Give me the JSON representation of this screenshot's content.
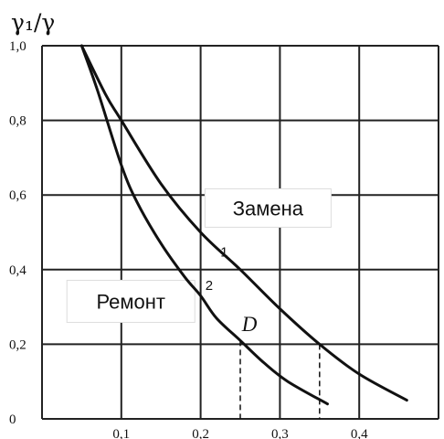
{
  "chart_data": {
    "type": "line",
    "ylabel": "γ₁/γ",
    "xlabel": "",
    "xlim": [
      0,
      0.5
    ],
    "ylim": [
      0,
      1.0
    ],
    "x_ticks": [
      "0,1",
      "0,2",
      "0,3",
      "0,4"
    ],
    "x_tick_values": [
      0.1,
      0.2,
      0.3,
      0.4
    ],
    "y_ticks": [
      "0",
      "0,2",
      "0,4",
      "0,6",
      "0,8",
      "1,0"
    ],
    "y_tick_values": [
      0,
      0.2,
      0.4,
      0.6,
      0.8,
      1.0
    ],
    "grid": true,
    "series": [
      {
        "name": "1",
        "x": [
          0.05,
          0.08,
          0.1,
          0.15,
          0.2,
          0.25,
          0.3,
          0.35,
          0.4,
          0.46
        ],
        "y": [
          1.0,
          0.87,
          0.8,
          0.63,
          0.5,
          0.4,
          0.295,
          0.2,
          0.12,
          0.05
        ]
      },
      {
        "name": "2",
        "x": [
          0.05,
          0.07,
          0.1,
          0.12,
          0.15,
          0.18,
          0.2,
          0.22,
          0.25,
          0.28,
          0.31,
          0.36
        ],
        "y": [
          1.0,
          0.88,
          0.68,
          0.58,
          0.47,
          0.38,
          0.33,
          0.27,
          0.21,
          0.15,
          0.1,
          0.04
        ]
      }
    ],
    "regions": {
      "upper": "Замена",
      "lower": "Ремонт"
    },
    "point": {
      "label": "D",
      "x": 0.25,
      "y": 0.21
    },
    "markers": [
      {
        "x": 0.25,
        "y": 0.21
      },
      {
        "x": 0.35,
        "y": 0.2
      }
    ]
  }
}
